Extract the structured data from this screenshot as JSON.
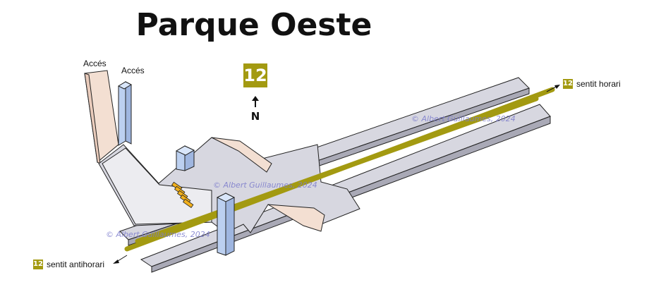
{
  "station": {
    "name": "Parque Oeste",
    "line": "12",
    "line_color": "#a39a11"
  },
  "compass": {
    "label": "N"
  },
  "accesses": [
    {
      "label": "Accés"
    },
    {
      "label": "Accés"
    }
  ],
  "directions": {
    "clockwise": {
      "line": "12",
      "label": "sentit horari"
    },
    "counterclockwise": {
      "line": "12",
      "label": "sentit antihorari"
    }
  },
  "watermark": "© Albert Guillaumes, 2024",
  "colors": {
    "platform": "#d7d7e0",
    "platform_side": "#a9a9b6",
    "walls": "#f3dfd2",
    "elevator": "#bcd0f0",
    "track": "#a39a11",
    "gates": "#f2b01c"
  }
}
